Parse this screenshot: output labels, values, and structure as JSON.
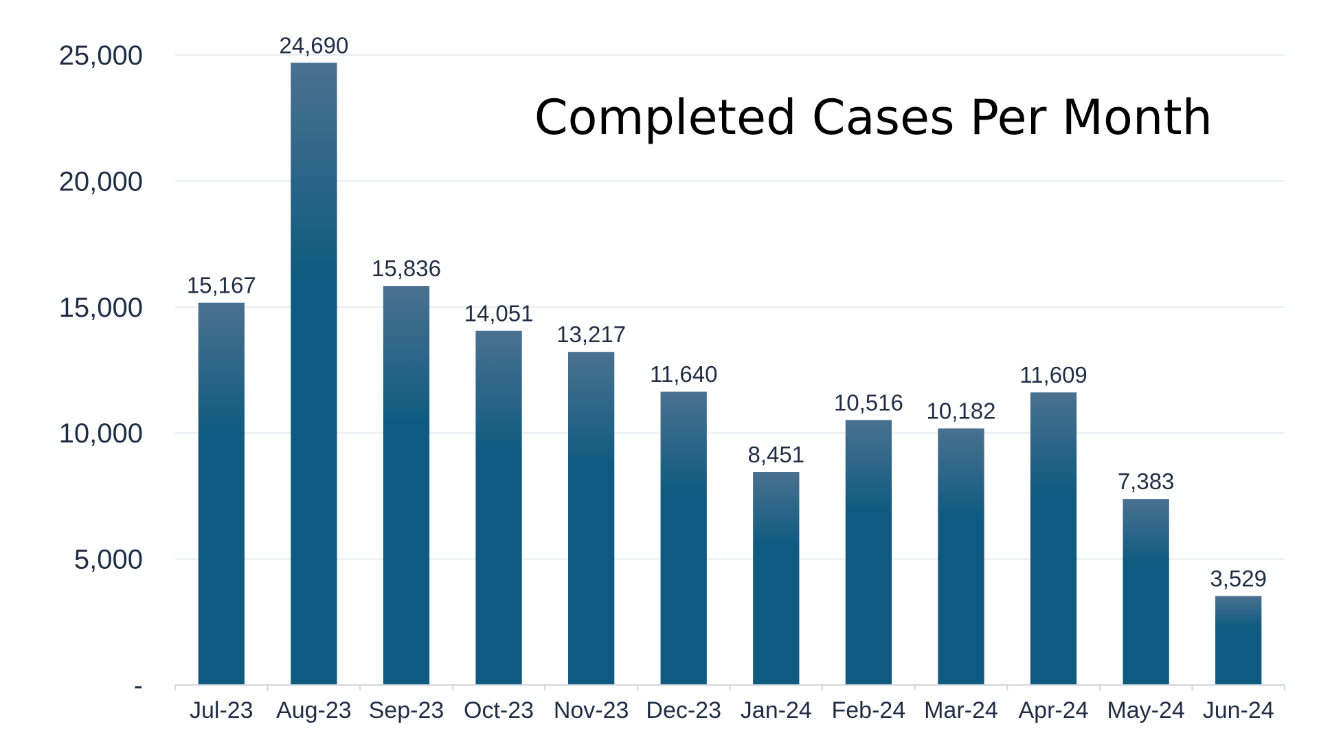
{
  "chart_data": {
    "type": "bar",
    "title": "Completed Cases Per Month",
    "xlabel": "",
    "ylabel": "",
    "categories": [
      "Jul-23",
      "Aug-23",
      "Sep-23",
      "Oct-23",
      "Nov-23",
      "Dec-23",
      "Jan-24",
      "Feb-24",
      "Mar-24",
      "Apr-24",
      "May-24",
      "Jun-24"
    ],
    "values": [
      15167,
      24690,
      15836,
      14051,
      13217,
      11640,
      8451,
      10516,
      10182,
      11609,
      7383,
      3529
    ],
    "data_labels": [
      "15,167",
      "24,690",
      "15,836",
      "14,051",
      "13,217",
      "11,640",
      "8,451",
      "10,516",
      "10,182",
      "11,609",
      "7,383",
      "3,529"
    ],
    "ylim": [
      0,
      25000
    ],
    "yticks": [
      0,
      5000,
      10000,
      15000,
      20000,
      25000
    ],
    "ytick_labels": [
      "-",
      "5,000",
      "10,000",
      "15,000",
      "20,000",
      "25,000"
    ],
    "grid": true,
    "legend": "none",
    "colors": {
      "bar_top": "#4a7190",
      "bar_bottom": "#0e5a80",
      "grid": "#dde5ee",
      "text": "#1f2d44"
    }
  }
}
